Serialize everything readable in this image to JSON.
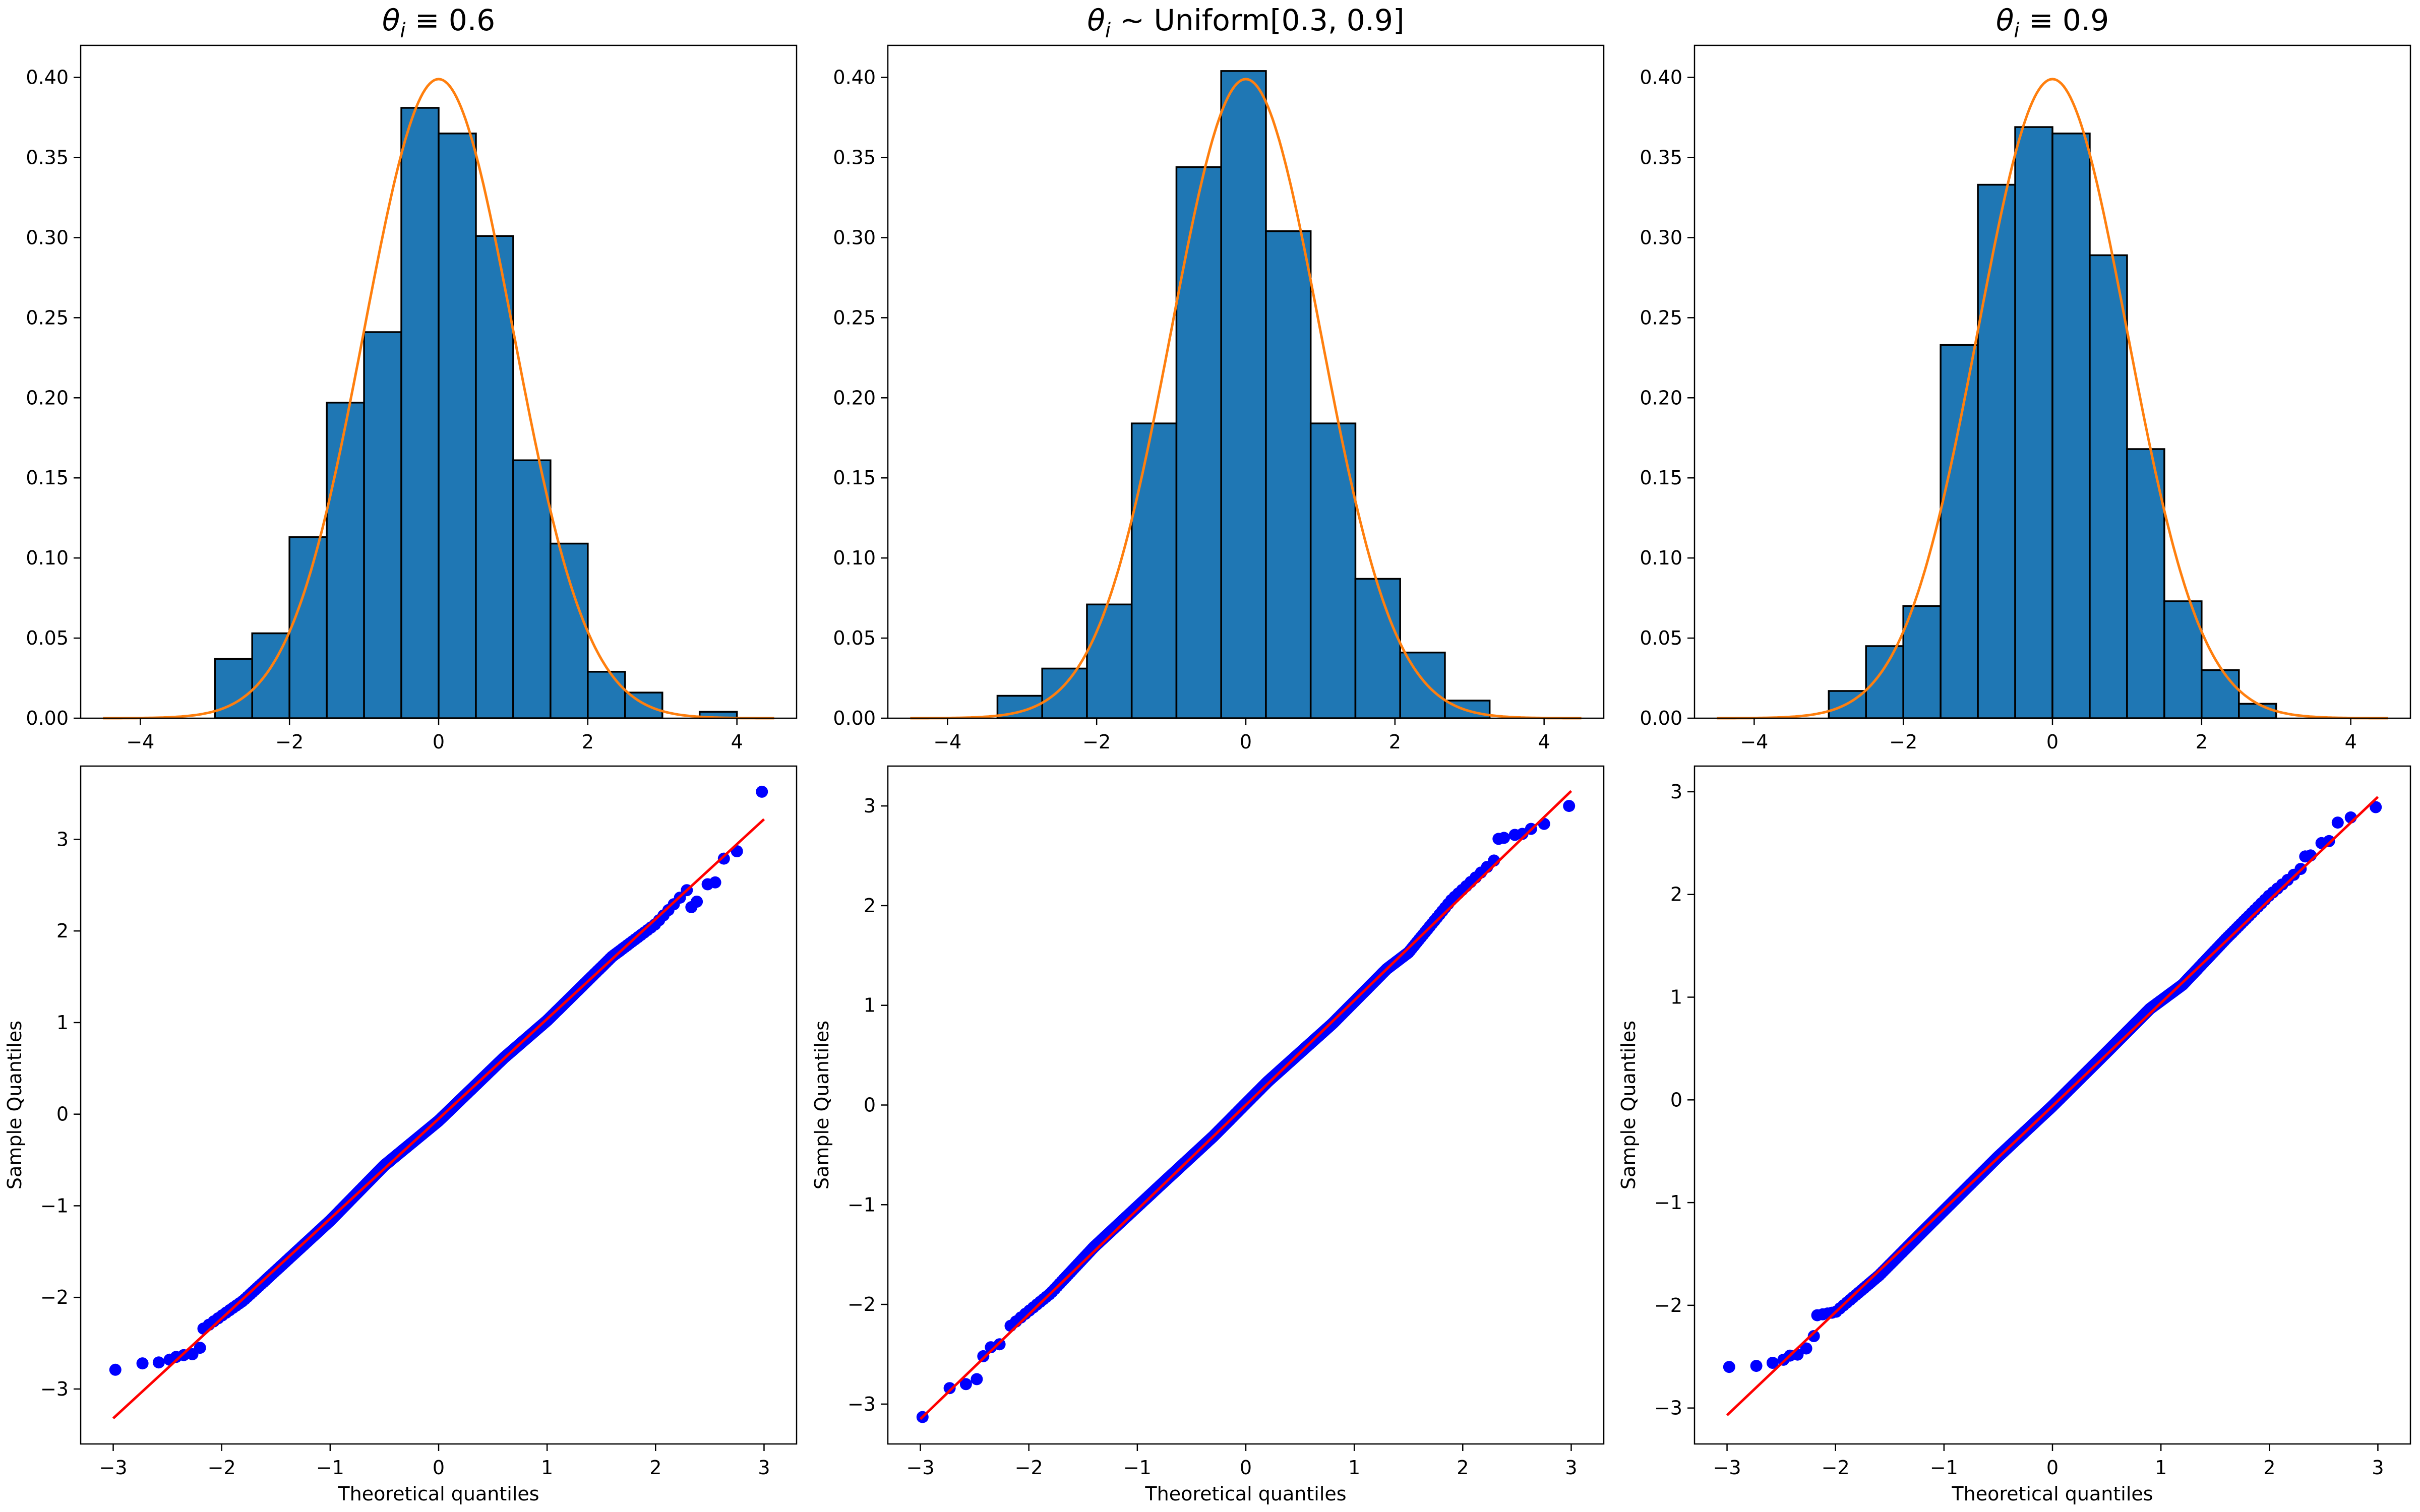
{
  "colors": {
    "bar": "#1f77b4",
    "pdf": "#ff7f0e",
    "points": "#0000ff",
    "refline": "#ff0000"
  },
  "chart_data": [
    {
      "type": "bar",
      "title": "θi ≡ 0.6",
      "title_parts": {
        "symbol": "θ",
        "sub": "i",
        "rest": " ≡ 0.6"
      },
      "xlim": [
        -4.8,
        4.8
      ],
      "ylim": [
        0,
        0.42
      ],
      "xticks": [
        -4,
        -2,
        0,
        2,
        4
      ],
      "xtick_labels": [
        "−4",
        "−2",
        "0",
        "2",
        "4"
      ],
      "yticks": [
        0,
        0.05,
        0.1,
        0.15,
        0.2,
        0.25,
        0.3,
        0.35,
        0.4
      ],
      "ytick_labels": [
        "0.00",
        "0.05",
        "0.10",
        "0.15",
        "0.20",
        "0.25",
        "0.30",
        "0.35",
        "0.40"
      ],
      "bin_edges": [
        -3.0,
        -2.5,
        -2.0,
        -1.5,
        -1.0,
        -0.5,
        0.0,
        0.5,
        1.0,
        1.5,
        2.0,
        2.5,
        3.0,
        3.5,
        4.0
      ],
      "values": [
        0.037,
        0.053,
        0.113,
        0.197,
        0.241,
        0.381,
        0.365,
        0.301,
        0.161,
        0.109,
        0.029,
        0.016,
        0.0,
        0.004
      ],
      "overlay": {
        "type": "line",
        "name": "normal pdf",
        "x_range": [
          -4.5,
          4.5
        ],
        "mean": 0,
        "sd": 1
      }
    },
    {
      "type": "bar",
      "title": "θi ~ Uniform[0.3, 0.9]",
      "title_parts": {
        "symbol": "θ",
        "sub": "i",
        "rest": " ∼ Uniform[0.3, 0.9]"
      },
      "xlim": [
        -4.8,
        4.8
      ],
      "ylim": [
        0,
        0.42
      ],
      "xticks": [
        -4,
        -2,
        0,
        2,
        4
      ],
      "xtick_labels": [
        "−4",
        "−2",
        "0",
        "2",
        "4"
      ],
      "yticks": [
        0,
        0.05,
        0.1,
        0.15,
        0.2,
        0.25,
        0.3,
        0.35,
        0.4
      ],
      "ytick_labels": [
        "0.00",
        "0.05",
        "0.10",
        "0.15",
        "0.20",
        "0.25",
        "0.30",
        "0.35",
        "0.40"
      ],
      "bin_edges": [
        -3.33,
        -2.73,
        -2.13,
        -1.53,
        -0.93,
        -0.33,
        0.27,
        0.87,
        1.47,
        2.07,
        2.67,
        3.27
      ],
      "values": [
        0.014,
        0.031,
        0.071,
        0.184,
        0.344,
        0.404,
        0.304,
        0.184,
        0.087,
        0.041,
        0.011
      ],
      "overlay": {
        "type": "line",
        "name": "normal pdf",
        "x_range": [
          -4.5,
          4.5
        ],
        "mean": 0,
        "sd": 1
      }
    },
    {
      "type": "bar",
      "title": "θi ≡ 0.9",
      "title_parts": {
        "symbol": "θ",
        "sub": "i",
        "rest": " ≡ 0.9"
      },
      "xlim": [
        -4.8,
        4.8
      ],
      "ylim": [
        0,
        0.42
      ],
      "xticks": [
        -4,
        -2,
        0,
        2,
        4
      ],
      "xtick_labels": [
        "−4",
        "−2",
        "0",
        "2",
        "4"
      ],
      "yticks": [
        0,
        0.05,
        0.1,
        0.15,
        0.2,
        0.25,
        0.3,
        0.35,
        0.4
      ],
      "ytick_labels": [
        "0.00",
        "0.05",
        "0.10",
        "0.15",
        "0.20",
        "0.25",
        "0.30",
        "0.35",
        "0.40"
      ],
      "bin_edges": [
        -3.0,
        -2.5,
        -2.0,
        -1.5,
        -1.0,
        -0.5,
        0.0,
        0.5,
        1.0,
        1.5,
        2.0,
        2.5,
        3.0
      ],
      "values": [
        0.017,
        0.045,
        0.07,
        0.233,
        0.333,
        0.369,
        0.365,
        0.289,
        0.168,
        0.073,
        0.03,
        0.009
      ],
      "overlay": {
        "type": "line",
        "name": "normal pdf",
        "x_range": [
          -4.5,
          4.5
        ],
        "mean": 0,
        "sd": 1
      }
    },
    {
      "type": "scatter",
      "title": "",
      "xlabel": "Theoretical quantiles",
      "ylabel": "Sample Quantiles",
      "xlim": [
        -3.3,
        3.3
      ],
      "ylim": [
        -3.6,
        3.8
      ],
      "xticks": [
        -3,
        -2,
        -1,
        0,
        1,
        2,
        3
      ],
      "xtick_labels": [
        "−3",
        "−2",
        "−1",
        "0",
        "1",
        "2",
        "3"
      ],
      "yticks": [
        -3,
        -2,
        -1,
        0,
        1,
        2,
        3
      ],
      "ytick_labels": [
        "−3",
        "−2",
        "−1",
        "0",
        "1",
        "2",
        "3"
      ],
      "n_points": 500,
      "reference_line": {
        "x": [
          -3,
          3
        ],
        "y": [
          -3.32,
          3.22
        ]
      },
      "points": [
        [
          -2.98,
          -2.79
        ],
        [
          -2.73,
          -2.72
        ],
        [
          -2.58,
          -2.71
        ],
        [
          -2.48,
          -2.68
        ],
        [
          -2.42,
          -2.65
        ],
        [
          -2.35,
          -2.63
        ],
        [
          -2.27,
          -2.62
        ],
        [
          -2.2,
          -2.55
        ],
        [
          2.33,
          2.26
        ],
        [
          2.38,
          2.32
        ],
        [
          2.48,
          2.51
        ],
        [
          2.55,
          2.53
        ],
        [
          2.63,
          2.79
        ],
        [
          2.75,
          2.87
        ],
        [
          2.98,
          3.52
        ]
      ],
      "deviations": [
        [
          -3.0,
          0.3
        ],
        [
          -2.2,
          0.18
        ],
        [
          -1.8,
          -0.05
        ],
        [
          -1.0,
          -0.05
        ],
        [
          -0.5,
          0.08
        ],
        [
          0.0,
          -0.05
        ],
        [
          0.6,
          0.02
        ],
        [
          1.0,
          -0.04
        ],
        [
          1.6,
          0.06
        ],
        [
          2.0,
          -0.12
        ],
        [
          2.4,
          0.05
        ],
        [
          3.0,
          0.1
        ]
      ]
    },
    {
      "type": "scatter",
      "title": "",
      "xlabel": "Theoretical quantiles",
      "ylabel": "Sample Quantiles",
      "xlim": [
        -3.3,
        3.3
      ],
      "ylim": [
        -3.4,
        3.4
      ],
      "xticks": [
        -3,
        -2,
        -1,
        0,
        1,
        2,
        3
      ],
      "xtick_labels": [
        "−3",
        "−2",
        "−1",
        "0",
        "1",
        "2",
        "3"
      ],
      "yticks": [
        -3,
        -2,
        -1,
        0,
        1,
        2,
        3
      ],
      "ytick_labels": [
        "−3",
        "−2",
        "−1",
        "0",
        "1",
        "2",
        "3"
      ],
      "n_points": 500,
      "reference_line": {
        "x": [
          -3,
          3
        ],
        "y": [
          -3.15,
          3.15
        ]
      },
      "points": [
        [
          -2.98,
          -3.13
        ],
        [
          -2.73,
          -2.84
        ],
        [
          -2.58,
          -2.8
        ],
        [
          -2.48,
          -2.75
        ],
        [
          -2.42,
          -2.52
        ],
        [
          -2.35,
          -2.43
        ],
        [
          -2.27,
          -2.4
        ],
        [
          2.33,
          2.67
        ],
        [
          2.38,
          2.68
        ],
        [
          2.48,
          2.71
        ],
        [
          2.55,
          2.72
        ],
        [
          2.63,
          2.77
        ],
        [
          2.75,
          2.82
        ],
        [
          2.98,
          3.0
        ]
      ],
      "deviations": [
        [
          -3.0,
          0.0
        ],
        [
          -2.2,
          0.15
        ],
        [
          -1.8,
          0.0
        ],
        [
          -1.4,
          0.1
        ],
        [
          -0.8,
          0.05
        ],
        [
          -0.3,
          0.0
        ],
        [
          0.2,
          0.05
        ],
        [
          0.8,
          -0.05
        ],
        [
          1.3,
          0.0
        ],
        [
          1.5,
          -0.1
        ],
        [
          1.9,
          0.15
        ],
        [
          2.4,
          0.1
        ],
        [
          3.0,
          -0.1
        ]
      ]
    },
    {
      "type": "scatter",
      "title": "",
      "xlabel": "Theoretical quantiles",
      "ylabel": "Sample Quantiles",
      "xlim": [
        -3.3,
        3.3
      ],
      "ylim": [
        -3.35,
        3.25
      ],
      "xticks": [
        -3,
        -2,
        -1,
        0,
        1,
        2,
        3
      ],
      "xtick_labels": [
        "−3",
        "−2",
        "−1",
        "0",
        "1",
        "2",
        "3"
      ],
      "yticks": [
        -3,
        -2,
        -1,
        0,
        1,
        2,
        3
      ],
      "ytick_labels": [
        "−3",
        "−2",
        "−1",
        "0",
        "1",
        "2",
        "3"
      ],
      "n_points": 500,
      "reference_line": {
        "x": [
          -3,
          3
        ],
        "y": [
          -3.07,
          2.95
        ]
      },
      "points": [
        [
          -2.98,
          -2.6
        ],
        [
          -2.73,
          -2.59
        ],
        [
          -2.58,
          -2.56
        ],
        [
          -2.48,
          -2.53
        ],
        [
          -2.42,
          -2.49
        ],
        [
          -2.35,
          -2.48
        ],
        [
          -2.27,
          -2.42
        ],
        [
          -2.2,
          -2.3
        ],
        [
          2.33,
          2.37
        ],
        [
          2.38,
          2.38
        ],
        [
          2.48,
          2.5
        ],
        [
          2.55,
          2.52
        ],
        [
          2.63,
          2.7
        ],
        [
          2.75,
          2.75
        ],
        [
          2.98,
          2.85
        ]
      ],
      "deviations": [
        [
          -3.0,
          0.42
        ],
        [
          -2.3,
          0.55
        ],
        [
          -2.0,
          0.0
        ],
        [
          -1.6,
          -0.1
        ],
        [
          -1.2,
          -0.05
        ],
        [
          -0.5,
          0.02
        ],
        [
          0.0,
          0.0
        ],
        [
          0.5,
          0.05
        ],
        [
          0.9,
          0.1
        ],
        [
          1.2,
          -0.05
        ],
        [
          1.6,
          0.05
        ],
        [
          2.0,
          0.1
        ],
        [
          2.4,
          0.0
        ],
        [
          3.0,
          -0.1
        ]
      ]
    }
  ]
}
